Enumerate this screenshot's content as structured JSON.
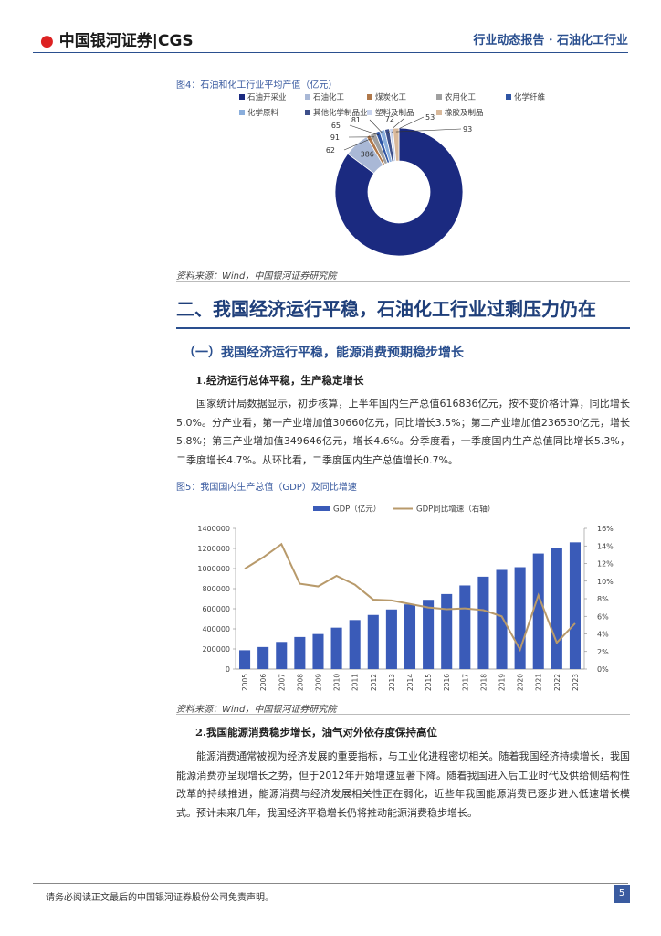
{
  "header": {
    "logo": "中国银河证券|CGS",
    "report": "行业动态报告 · 石油化工行业"
  },
  "figure4": {
    "caption": "图4：石油和化工行业平均产值（亿元）",
    "source": "资料来源：Wind，中国银河证券研究院",
    "chart": {
      "type": "pie",
      "categories": [
        "石油开采业",
        "石油化工",
        "煤炭化工",
        "农用化工",
        "化学纤维",
        "化学原料",
        "其他化学制品业",
        "塑料及制品",
        "橡胶及制品"
      ],
      "values": [
        5198,
        386,
        62,
        91,
        65,
        81,
        72,
        53,
        93
      ],
      "colors": [
        "#1b2a80",
        "#a9b8d6",
        "#b0784a",
        "#a0a0a0",
        "#2f55a4",
        "#8aaedc",
        "#3d4f8a",
        "#c9d4ee",
        "#d9b99b"
      ]
    }
  },
  "section": {
    "heading": "二、我国经济运行平稳，石油化工行业过剩压力仍在",
    "subheading": "（一）我国经济运行平稳，能源消费预期稳步增长",
    "point1": {
      "heading": "1.经济运行总体平稳，生产稳定增长",
      "text": "国家统计局数据显示，初步核算，上半年国内生产总值616836亿元，按不变价格计算，同比增长5.0%。分产业看，第一产业增加值30660亿元，同比增长3.5%；第二产业增加值236530亿元，增长5.8%；第三产业增加值349646亿元，增长4.6%。分季度看，一季度国内生产总值同比增长5.3%，二季度增长4.7%。从环比看，二季度国内生产总值增长0.7%。"
    },
    "point2": {
      "heading": "2.我国能源消费稳步增长，油气对外依存度保持高位",
      "text": "能源消费通常被视为经济发展的重要指标，与工业化进程密切相关。随着我国经济持续增长，我国能源消费亦呈现增长之势，但于2012年开始增速显著下降。随着我国进入后工业时代及供给侧结构性改革的持续推进，能源消费与经济发展相关性正在弱化，近些年我国能源消费已逐步进入低速增长模式。预计未来几年，我国经济平稳增长仍将推动能源消费稳步增长。"
    }
  },
  "figure5": {
    "caption": "图5：我国国内生产总值（GDP）及同比增速",
    "source": "资料来源：Wind，中国银河证券研究院",
    "chart": {
      "type": "bar-line",
      "categories": [
        "2005",
        "2006",
        "2007",
        "2008",
        "2009",
        "2010",
        "2011",
        "2012",
        "2013",
        "2014",
        "2015",
        "2016",
        "2017",
        "2018",
        "2019",
        "2020",
        "2021",
        "2022",
        "2023"
      ],
      "series": [
        {
          "name": "GDP（亿元）",
          "type": "bar",
          "color": "#3a5bb8",
          "values": [
            187319,
            219439,
            270092,
            319245,
            348518,
            412119,
            487940,
            538580,
            592963,
            643563,
            688858,
            746395,
            832036,
            919281,
            986515,
            1013567,
            1149237,
            1204724,
            1260582
          ]
        },
        {
          "name": "GDP同比增速（右轴）",
          "type": "line",
          "axis": "y2",
          "color": "#b89a6b",
          "values": [
            11.4,
            12.7,
            14.2,
            9.7,
            9.4,
            10.6,
            9.6,
            7.9,
            7.8,
            7.4,
            7.0,
            6.8,
            6.9,
            6.7,
            6.0,
            2.2,
            8.4,
            3.0,
            5.2
          ]
        }
      ],
      "ylim": [
        0,
        1400000
      ],
      "yticks": [
        0,
        200000,
        400000,
        600000,
        800000,
        1000000,
        1200000,
        1400000
      ],
      "y2lim": [
        0,
        16
      ],
      "y2ticks": [
        {
          "value": 0,
          "label": "0%"
        },
        {
          "value": 2,
          "label": "2%"
        },
        {
          "value": 4,
          "label": "4%"
        },
        {
          "value": 6,
          "label": "6%"
        },
        {
          "value": 8,
          "label": "8%"
        },
        {
          "value": 10,
          "label": "10%"
        },
        {
          "value": 12,
          "label": "12%"
        },
        {
          "value": 14,
          "label": "14%"
        },
        {
          "value": 16,
          "label": "16%"
        }
      ]
    }
  },
  "footer": {
    "disclaimer": "请务必阅读正文最后的中国银河证券股份公司免责声明。",
    "page": "5"
  }
}
